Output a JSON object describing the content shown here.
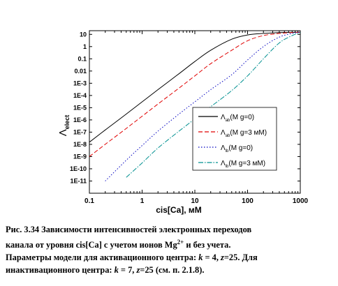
{
  "chart_data": {
    "type": "line",
    "x_scale": "log",
    "y_scale": "log",
    "xlim": [
      0.1,
      1000
    ],
    "ylim": [
      1e-12,
      20
    ],
    "xlabel": "cis[Ca], мМ",
    "ylabel_main": "Λ",
    "ylabel_sub": "elect",
    "x_ticks": [
      0.1,
      1,
      10,
      100,
      1000
    ],
    "x_tick_labels": [
      "0.1",
      "1",
      "10",
      "100",
      "1000"
    ],
    "y_ticks": [
      1e-11,
      1e-10,
      1e-09,
      1e-08,
      1e-07,
      1e-06,
      1e-05,
      0.0001,
      0.001,
      0.01,
      0.1,
      1,
      10
    ],
    "y_tick_labels": [
      "1E-11",
      "1E-10",
      "1E-9",
      "1E-8",
      "1E-7",
      "1E-6",
      "1E-5",
      "1E-4",
      "1E-3",
      "0.01",
      "0.1",
      "1",
      "10"
    ],
    "legend_position": "center-right",
    "series": [
      {
        "legend_main": "Λ",
        "legend_sub": "ab",
        "legend_rest": "(M g=0)",
        "color": "#000000",
        "dash": "",
        "x": [
          0.1,
          0.2,
          0.5,
          1,
          2,
          5,
          10,
          20,
          50,
          100,
          200,
          400,
          700,
          1000
        ],
        "y": [
          1.5e-08,
          1.5e-07,
          3e-06,
          3e-05,
          0.0003,
          0.006,
          0.06,
          0.5,
          4,
          9,
          12,
          14,
          14.5,
          15
        ]
      },
      {
        "legend_main": "Λ",
        "legend_sub": "ab",
        "legend_rest": "(M g=3 мМ)",
        "color": "#e00000",
        "dash": "6,3",
        "x": [
          0.1,
          0.2,
          0.5,
          1,
          2,
          5,
          10,
          20,
          50,
          100,
          200,
          400,
          700,
          1000
        ],
        "y": [
          1e-09,
          1e-08,
          2e-07,
          2e-06,
          2e-05,
          0.0004,
          0.004,
          0.04,
          0.5,
          3,
          8,
          12,
          14,
          15
        ]
      },
      {
        "legend_main": "Λ",
        "legend_sub": "ib",
        "legend_rest": "(M g=0)",
        "color": "#0000c0",
        "dash": "1.5,2.5",
        "x": [
          0.2,
          0.5,
          1,
          2,
          5,
          10,
          20,
          50,
          100,
          200,
          400,
          700,
          1000
        ],
        "y": [
          1e-11,
          5e-10,
          8e-09,
          1.2e-07,
          3e-06,
          3e-05,
          0.0003,
          0.005,
          0.08,
          1,
          6,
          12,
          15
        ]
      },
      {
        "legend_main": "Λ",
        "legend_sub": "ib",
        "legend_rest": "(M g=3 мМ)",
        "color": "#009090",
        "dash": "7,2,1.5,2",
        "x": [
          0.5,
          1,
          2,
          5,
          10,
          20,
          50,
          100,
          200,
          400,
          700,
          1000
        ],
        "y": [
          2e-11,
          3e-10,
          5e-09,
          1.2e-07,
          1.2e-06,
          1.2e-05,
          0.00025,
          0.004,
          0.1,
          2,
          8,
          14
        ]
      }
    ]
  },
  "caption": {
    "line1": "Рис. 3.34 Зависимости интенсивностей электронных переходов",
    "line2_a": "канала от уровня cis[Ca] с учетом ионов Mg",
    "line2_sup": "2+",
    "line2_b": " и без учета.",
    "line3_a": "Параметры модели для активационного центра: ",
    "line3_k": "k",
    "line3_b": " = 4, ",
    "line3_z": "z",
    "line3_c": "=25. Для",
    "line4_a": "инактивационного центра: ",
    "line4_k": "k",
    "line4_b": " = 7, ",
    "line4_z": "z",
    "line4_c": "=25 (см. п. 2.1.8)."
  }
}
